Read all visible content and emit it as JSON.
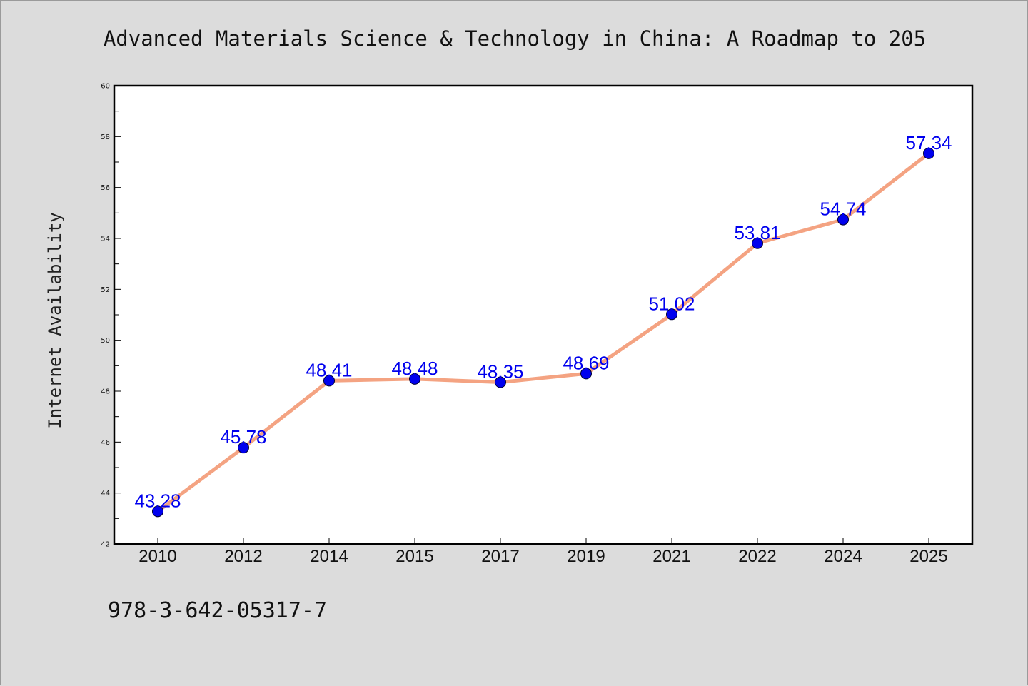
{
  "chart_data": {
    "type": "line",
    "title": "Advanced Materials Science & Technology in China: A Roadmap to 205",
    "xlabel": "",
    "ylabel": "Internet Availability",
    "categories": [
      "2010",
      "2012",
      "2014",
      "2015",
      "2017",
      "2019",
      "2021",
      "2022",
      "2024",
      "2025"
    ],
    "values": [
      43.28,
      45.78,
      48.41,
      48.48,
      48.35,
      48.69,
      51.02,
      53.81,
      54.74,
      57.34
    ],
    "data_labels": [
      "43.28",
      "45.78",
      "48.41",
      "48.48",
      "48.35",
      "48.69",
      "51.02",
      "53.81",
      "54.74",
      "57.34"
    ],
    "ylim": [
      42,
      60
    ],
    "yticks": [
      "42",
      "44",
      "46",
      "48",
      "50",
      "52",
      "54",
      "56",
      "58",
      "60"
    ],
    "grid": false,
    "legend": "none",
    "line_color": "#f4a382",
    "marker_color": "#0000ee"
  },
  "footer": {
    "isbn": "978-3-642-05317-7"
  }
}
